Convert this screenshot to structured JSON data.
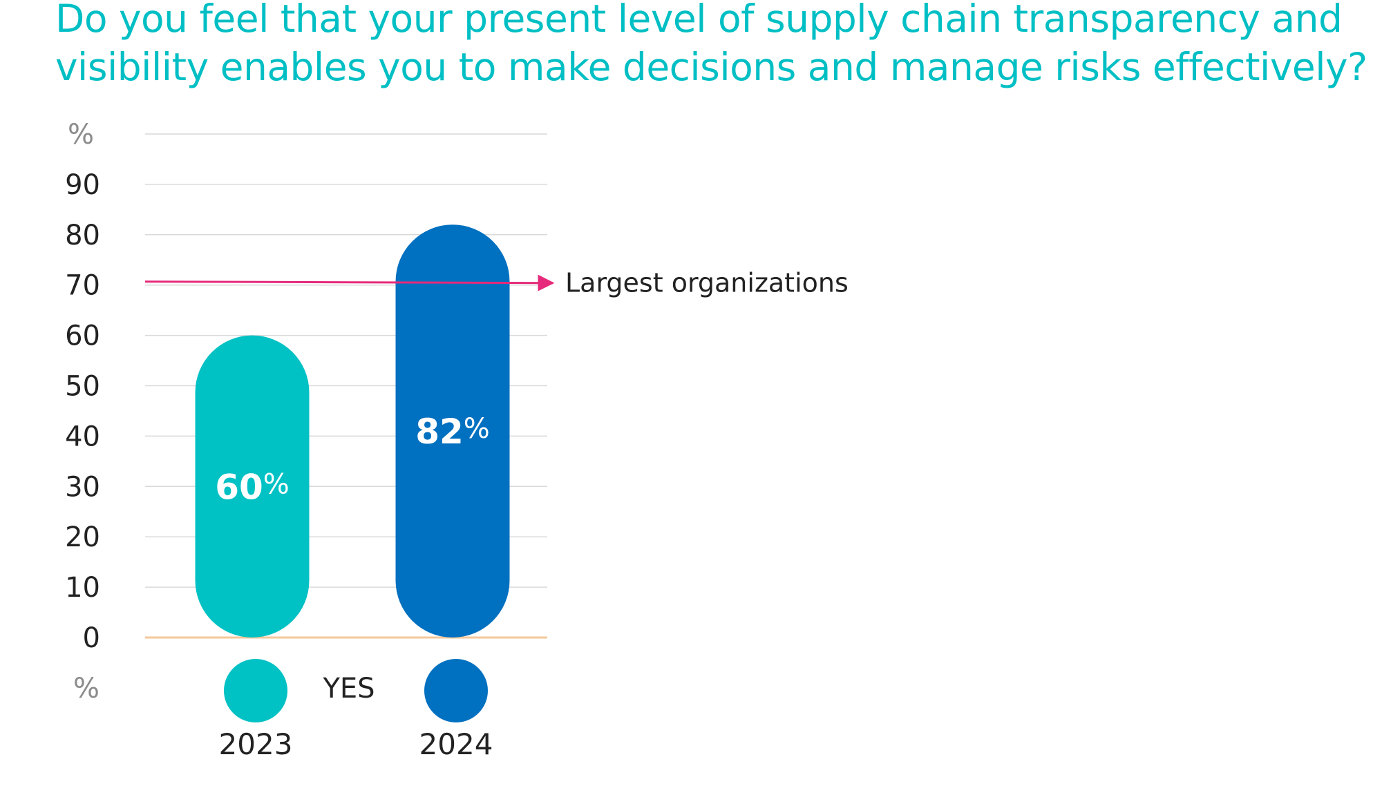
{
  "chart_data": {
    "type": "bar",
    "title_lines": [
      "Do you feel that your present level of supply chain transparency and",
      "visibility enables you to make decisions and manage risks effectively?"
    ],
    "y_unit_label": "%",
    "y_ticks": [
      "90",
      "80",
      "70",
      "60",
      "50",
      "40",
      "30",
      "20",
      "10",
      "0"
    ],
    "ylim": [
      0,
      100
    ],
    "grid": true,
    "categories": [
      "2023",
      "2024"
    ],
    "values": [
      60,
      82
    ],
    "value_labels": [
      "60",
      "82"
    ],
    "value_suffix": "%",
    "legend_label": "YES",
    "reference_line": {
      "value": 70,
      "label": "Largest organizations"
    },
    "colors": {
      "2023": "#00c1c4",
      "2024": "#0070c0",
      "title": "#00bfc4",
      "reference": "#e6297a",
      "grid": "#d9d9d9",
      "baseline": "#f5c89a"
    }
  }
}
